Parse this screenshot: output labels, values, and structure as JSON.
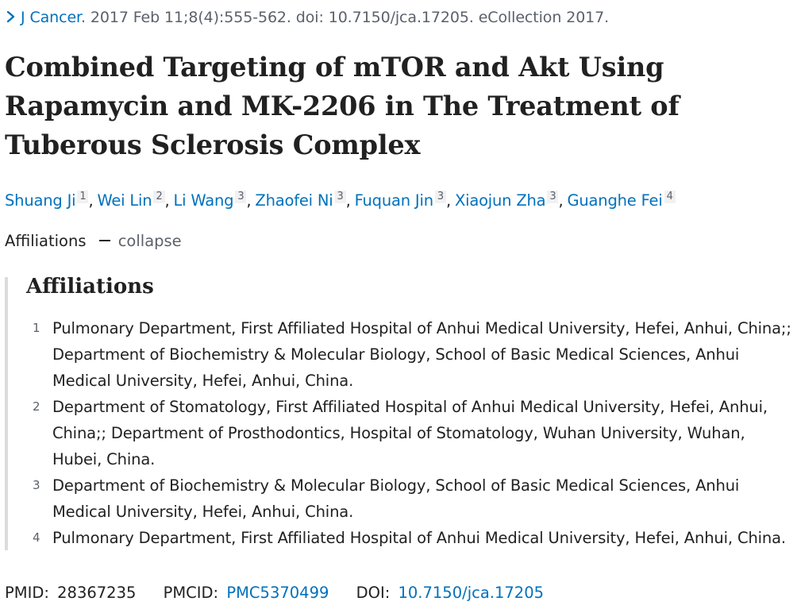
{
  "citation": {
    "journal": "J Cancer.",
    "details": " 2017 Feb 11;8(4):555-562. doi: 10.7150/jca.17205. eCollection 2017."
  },
  "title": "Combined Targeting of mTOR and Akt Using Rapamycin and MK-2206 in The Treatment of Tuberous Sclerosis Complex",
  "authors": [
    {
      "name": "Shuang Ji",
      "aff": "1"
    },
    {
      "name": "Wei Lin",
      "aff": "2"
    },
    {
      "name": "Li Wang",
      "aff": "3"
    },
    {
      "name": "Zhaofei Ni",
      "aff": "3"
    },
    {
      "name": "Fuquan Jin",
      "aff": "3"
    },
    {
      "name": "Xiaojun Zha",
      "aff": "3"
    },
    {
      "name": "Guanghe Fei",
      "aff": "4"
    }
  ],
  "affiliations_toggle": {
    "label": "Affiliations",
    "action": "collapse"
  },
  "affiliations": {
    "heading": "Affiliations",
    "items": [
      {
        "num": "1",
        "text": "Pulmonary Department, First Affiliated Hospital of Anhui Medical University, Hefei, Anhui, China;; Department of Biochemistry & Molecular Biology, School of Basic Medical Sciences, Anhui Medical University, Hefei, Anhui, China."
      },
      {
        "num": "2",
        "text": "Department of Stomatology, First Affiliated Hospital of Anhui Medical University, Hefei, Anhui, China;; Department of Prosthodontics, Hospital of Stomatology, Wuhan University, Wuhan, Hubei, China."
      },
      {
        "num": "3",
        "text": "Department of Biochemistry & Molecular Biology, School of Basic Medical Sciences, Anhui Medical University, Hefei, Anhui, China."
      },
      {
        "num": "4",
        "text": "Pulmonary Department, First Affiliated Hospital of Anhui Medical University, Hefei, Anhui, China."
      }
    ]
  },
  "identifiers": {
    "pmid_label": "PMID:",
    "pmid": "28367235",
    "pmcid_label": "PMCID:",
    "pmcid": "PMC5370499",
    "doi_label": "DOI:",
    "doi": "10.7150/jca.17205"
  },
  "colors": {
    "link": "#0071bc",
    "muted": "#5b616b",
    "text": "#212121",
    "rule": "#dcdcdc"
  }
}
